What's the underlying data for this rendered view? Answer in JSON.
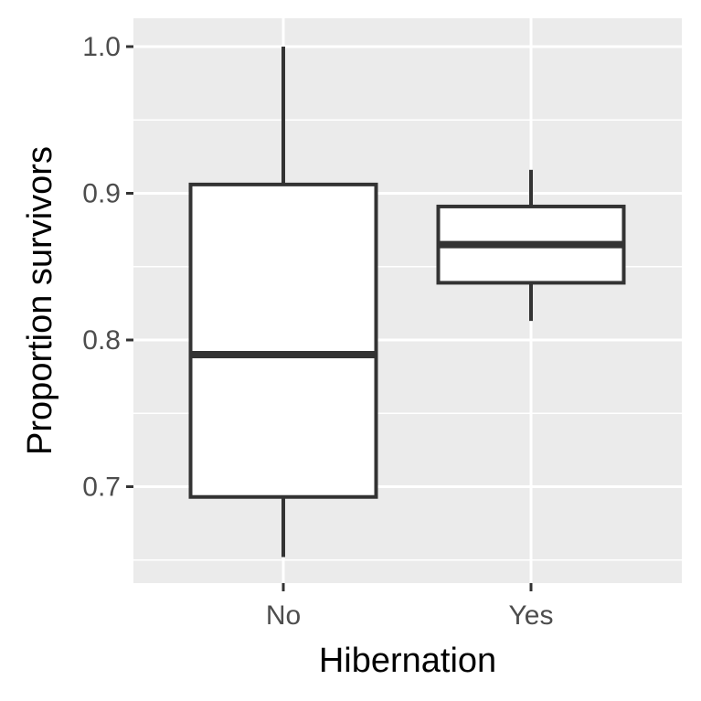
{
  "chart_data": {
    "type": "boxplot",
    "xlabel": "Hibernation",
    "ylabel": "Proportion survivors",
    "categories": [
      "No",
      "Yes"
    ],
    "ylim": [
      0.638,
      1.02
    ],
    "y_ticks": [
      0.7,
      0.8,
      0.9,
      1.0
    ],
    "y_tick_labels": [
      "0.7",
      "0.8",
      "0.9",
      "1.0"
    ],
    "grid": true,
    "colors": {
      "panel_background": "#ebebeb",
      "grid": "#ffffff",
      "box_fill": "#ffffff",
      "box_line": "#333333",
      "tick_label": "#4d4d4d"
    },
    "boxes": [
      {
        "category": "No",
        "whisker_low": 0.652,
        "q1": 0.693,
        "median": 0.79,
        "q3": 0.906,
        "whisker_high": 1.0
      },
      {
        "category": "Yes",
        "whisker_low": 0.813,
        "q1": 0.839,
        "median": 0.865,
        "q3": 0.891,
        "whisker_high": 0.916
      }
    ]
  }
}
